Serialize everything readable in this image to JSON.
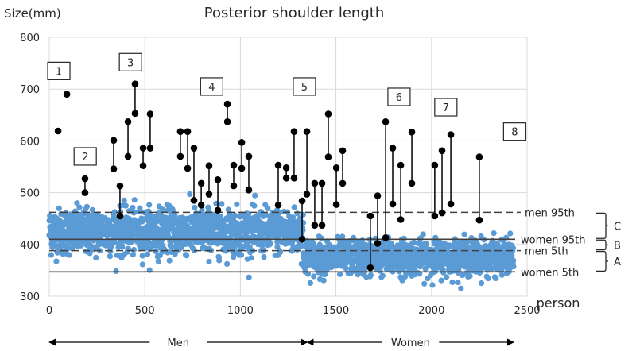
{
  "chart_data": {
    "type": "scatter",
    "title": "Posterior shoulder length",
    "ylabel": "Size(mm)",
    "xlabel": "person",
    "xlim": [
      0,
      2500
    ],
    "ylim": [
      300,
      800
    ],
    "xticks": [
      0,
      500,
      1000,
      1500,
      2000,
      2500
    ],
    "yticks": [
      300,
      400,
      500,
      600,
      700,
      800
    ],
    "grid": true,
    "colors": {
      "scatter": "#5b9bd5",
      "pair": "#000000",
      "grid": "#d9d9d9",
      "ref_line": "#404040"
    },
    "groups": [
      {
        "name": "Men",
        "x_range": [
          0,
          1330
        ],
        "mean": 425,
        "sd": 22
      },
      {
        "name": "Women",
        "x_range": [
          1330,
          2430
        ],
        "mean": 375,
        "sd": 17
      }
    ],
    "reference_lines": [
      {
        "label": "men 95th",
        "y": 462,
        "style": "dashed",
        "x_range": [
          0,
          2500
        ]
      },
      {
        "label": "women 95th",
        "y": 410,
        "style": "solid",
        "x_range": [
          0,
          2500
        ]
      },
      {
        "label": "men 5th",
        "y": 388,
        "style": "dashed",
        "x_range": [
          0,
          2500
        ]
      },
      {
        "label": "women 5th",
        "y": 347,
        "style": "solid",
        "x_range": [
          0,
          2500
        ]
      }
    ],
    "brackets": [
      {
        "label": "C",
        "from": 462,
        "to": 410
      },
      {
        "label": "B",
        "from": 410,
        "to": 388
      },
      {
        "label": "A",
        "from": 388,
        "to": 347
      }
    ],
    "single_points": [
      {
        "x": 46,
        "y": 619
      },
      {
        "x": 92,
        "y": 690
      }
    ],
    "pairs": [
      {
        "x": 187,
        "y1": 527,
        "y2": 500
      },
      {
        "x": 337,
        "y1": 601,
        "y2": 546
      },
      {
        "x": 370,
        "y1": 513,
        "y2": 455
      },
      {
        "x": 412,
        "y1": 637,
        "y2": 570
      },
      {
        "x": 449,
        "y1": 710,
        "y2": 653
      },
      {
        "x": 491,
        "y1": 586,
        "y2": 552
      },
      {
        "x": 528,
        "y1": 652,
        "y2": 586
      },
      {
        "x": 686,
        "y1": 618,
        "y2": 570
      },
      {
        "x": 724,
        "y1": 618,
        "y2": 547
      },
      {
        "x": 757,
        "y1": 586,
        "y2": 485
      },
      {
        "x": 795,
        "y1": 518,
        "y2": 476
      },
      {
        "x": 836,
        "y1": 552,
        "y2": 497
      },
      {
        "x": 882,
        "y1": 525,
        "y2": 466
      },
      {
        "x": 932,
        "y1": 671,
        "y2": 637
      },
      {
        "x": 965,
        "y1": 553,
        "y2": 513
      },
      {
        "x": 1007,
        "y1": 597,
        "y2": 547
      },
      {
        "x": 1044,
        "y1": 570,
        "y2": 505
      },
      {
        "x": 1198,
        "y1": 553,
        "y2": 476
      },
      {
        "x": 1240,
        "y1": 548,
        "y2": 528
      },
      {
        "x": 1281,
        "y1": 618,
        "y2": 528
      },
      {
        "x": 1323,
        "y1": 484,
        "y2": 410
      },
      {
        "x": 1348,
        "y1": 618,
        "y2": 497
      },
      {
        "x": 1389,
        "y1": 518,
        "y2": 437
      },
      {
        "x": 1427,
        "y1": 518,
        "y2": 437
      },
      {
        "x": 1460,
        "y1": 652,
        "y2": 569
      },
      {
        "x": 1502,
        "y1": 548,
        "y2": 477
      },
      {
        "x": 1535,
        "y1": 581,
        "y2": 518
      },
      {
        "x": 1680,
        "y1": 455,
        "y2": 355
      },
      {
        "x": 1718,
        "y1": 494,
        "y2": 402
      },
      {
        "x": 1760,
        "y1": 637,
        "y2": 413
      },
      {
        "x": 1797,
        "y1": 586,
        "y2": 478
      },
      {
        "x": 1839,
        "y1": 553,
        "y2": 448
      },
      {
        "x": 1897,
        "y1": 617,
        "y2": 518
      },
      {
        "x": 2017,
        "y1": 553,
        "y2": 455
      },
      {
        "x": 2055,
        "y1": 581,
        "y2": 461
      },
      {
        "x": 2101,
        "y1": 612,
        "y2": 478
      },
      {
        "x": 2250,
        "y1": 569,
        "y2": 447
      }
    ],
    "annotations": [
      {
        "text": "1",
        "x": 50,
        "y": 735
      },
      {
        "text": "2",
        "x": 188,
        "y": 570
      },
      {
        "text": "3",
        "x": 425,
        "y": 752
      },
      {
        "text": "4",
        "x": 850,
        "y": 705
      },
      {
        "text": "5",
        "x": 1335,
        "y": 705
      },
      {
        "text": "6",
        "x": 1830,
        "y": 685
      },
      {
        "text": "7",
        "x": 2075,
        "y": 665
      },
      {
        "text": "8",
        "x": 2435,
        "y": 618
      }
    ],
    "group_arrows": [
      {
        "label": "Men",
        "from": 0,
        "to": 1350
      },
      {
        "label": "Women",
        "from": 1350,
        "to": 2430
      }
    ]
  }
}
